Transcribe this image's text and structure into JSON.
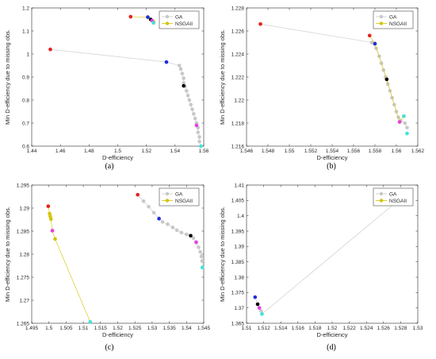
{
  "chart_data": [
    {
      "type": "scatter",
      "panel_label": "(a)",
      "xlabel": "D-efficiency",
      "ylabel": "Min D-efficiency due to missing obs.",
      "xlim": [
        1.44,
        1.56
      ],
      "ylim": [
        0.6,
        1.2
      ],
      "xticks": [
        "1.44",
        "1.46",
        "1.48",
        "1.5",
        "1.52",
        "1.54",
        "1.56"
      ],
      "yticks": [
        "0.6",
        "0.7",
        "0.8",
        "0.9",
        "1",
        "1.1",
        "1.2"
      ],
      "legend": {
        "position": "top-right",
        "entries": [
          "GA",
          "NSGAII"
        ]
      },
      "series": [
        {
          "name": "GA",
          "color": "#c8c8c8",
          "points": [
            [
              1.453,
              1.02
            ],
            [
              1.534,
              0.965
            ],
            [
              1.543,
              0.95
            ],
            [
              1.544,
              0.935
            ],
            [
              1.545,
              0.915
            ],
            [
              1.546,
              0.895
            ],
            [
              1.546,
              0.875
            ],
            [
              1.547,
              0.86
            ],
            [
              1.548,
              0.84
            ],
            [
              1.549,
              0.82
            ],
            [
              1.55,
              0.8
            ],
            [
              1.551,
              0.78
            ],
            [
              1.552,
              0.76
            ],
            [
              1.553,
              0.74
            ],
            [
              1.554,
              0.72
            ],
            [
              1.555,
              0.7
            ],
            [
              1.556,
              0.68
            ],
            [
              1.556,
              0.66
            ],
            [
              1.557,
              0.64
            ],
            [
              1.557,
              0.62
            ],
            [
              1.558,
              0.6
            ]
          ]
        },
        {
          "name": "NSGAII",
          "color": "#d4c400",
          "points": [
            [
              1.509,
              1.162
            ],
            [
              1.521,
              1.16
            ],
            [
              1.523,
              1.15
            ],
            [
              1.524,
              1.145
            ],
            [
              1.525,
              1.14
            ],
            [
              1.525,
              1.135
            ]
          ]
        }
      ],
      "highlights": [
        {
          "color": "#e8211e",
          "points": [
            [
              1.453,
              1.02
            ],
            [
              1.509,
              1.162
            ]
          ]
        },
        {
          "color": "#1f2ee0",
          "points": [
            [
              1.534,
              0.965
            ],
            [
              1.521,
              1.16
            ]
          ]
        },
        {
          "color": "#000000",
          "points": [
            [
              1.546,
              0.862
            ],
            [
              1.523,
              1.15
            ]
          ]
        },
        {
          "color": "#e83fe6",
          "points": [
            [
              1.555,
              0.69
            ],
            [
              1.524,
              1.145
            ]
          ]
        },
        {
          "color": "#3fe3df",
          "points": [
            [
              1.558,
              0.6
            ],
            [
              1.525,
              1.135
            ]
          ]
        }
      ]
    },
    {
      "type": "scatter",
      "panel_label": "(b)",
      "xlabel": "D-efficiency",
      "ylabel": "Min D-efficiency due to missing obs.",
      "xlim": [
        1.546,
        1.562
      ],
      "ylim": [
        1.216,
        1.228
      ],
      "xticks": [
        "1.546",
        "1.548",
        "1.55",
        "1.552",
        "1.554",
        "1.556",
        "1.558",
        "1.56",
        "1.562"
      ],
      "yticks": [
        "1.216",
        "1.218",
        "1.22",
        "1.222",
        "1.224",
        "1.226",
        "1.228"
      ],
      "legend": {
        "position": "top-right",
        "entries": [
          "GA",
          "NSGAII"
        ]
      },
      "series": [
        {
          "name": "GA",
          "color": "#c8c8c8",
          "points": [
            [
              1.5473,
              1.2266
            ],
            [
              1.5577,
              1.225
            ],
            [
              1.5581,
              1.2245
            ],
            [
              1.5584,
              1.2238
            ],
            [
              1.5586,
              1.2232
            ],
            [
              1.5588,
              1.2226
            ],
            [
              1.559,
              1.222
            ],
            [
              1.5592,
              1.2214
            ],
            [
              1.5594,
              1.2208
            ],
            [
              1.5596,
              1.2202
            ],
            [
              1.5598,
              1.2196
            ],
            [
              1.56,
              1.219
            ],
            [
              1.5602,
              1.2185
            ],
            [
              1.5604,
              1.2182
            ],
            [
              1.5608,
              1.218
            ],
            [
              1.561,
              1.2176
            ]
          ]
        },
        {
          "name": "NSGAII",
          "color": "#d4c400",
          "points": [
            [
              1.5575,
              1.2256
            ],
            [
              1.558,
              1.2249
            ],
            [
              1.5591,
              1.2218
            ],
            [
              1.5603,
              1.2181
            ],
            [
              1.5607,
              1.2186
            ]
          ]
        }
      ],
      "highlights": [
        {
          "color": "#e8211e",
          "points": [
            [
              1.5473,
              1.2266
            ],
            [
              1.5575,
              1.2256
            ]
          ]
        },
        {
          "color": "#1f2ee0",
          "points": [
            [
              1.558,
              1.2249
            ]
          ]
        },
        {
          "color": "#000000",
          "points": [
            [
              1.5591,
              1.2218
            ]
          ]
        },
        {
          "color": "#e83fe6",
          "points": [
            [
              1.5603,
              1.2181
            ]
          ]
        },
        {
          "color": "#3fe3df",
          "points": [
            [
              1.561,
              1.2171
            ],
            [
              1.5607,
              1.2186
            ]
          ]
        }
      ]
    },
    {
      "type": "scatter",
      "panel_label": "(c)",
      "xlabel": "D-efficiency",
      "ylabel": "Min D-efficiency due to missing obs.",
      "xlim": [
        1.495,
        1.545
      ],
      "ylim": [
        1.265,
        1.295
      ],
      "xticks": [
        "1.495",
        "1.5",
        "1.505",
        "1.51",
        "1.515",
        "1.52",
        "1.525",
        "1.53",
        "1.535",
        "1.54",
        "1.545"
      ],
      "yticks": [
        "1.265",
        "1.27",
        "1.275",
        "1.28",
        "1.285",
        "1.29",
        "1.295"
      ],
      "legend": {
        "position": "top-right",
        "entries": [
          "GA",
          "NSGAII"
        ]
      },
      "series": [
        {
          "name": "GA",
          "color": "#c8c8c8",
          "points": [
            [
              1.5258,
              1.2929
            ],
            [
              1.5275,
              1.2915
            ],
            [
              1.529,
              1.2903
            ],
            [
              1.5305,
              1.289
            ],
            [
              1.532,
              1.2878
            ],
            [
              1.533,
              1.287
            ],
            [
              1.5345,
              1.2865
            ],
            [
              1.536,
              1.2858
            ],
            [
              1.5372,
              1.2852
            ],
            [
              1.5385,
              1.2847
            ],
            [
              1.54,
              1.2843
            ],
            [
              1.5412,
              1.284
            ],
            [
              1.542,
              1.2835
            ],
            [
              1.5428,
              1.2825
            ],
            [
              1.5435,
              1.2815
            ],
            [
              1.544,
              1.2805
            ],
            [
              1.5443,
              1.2795
            ],
            [
              1.5445,
              1.2785
            ],
            [
              1.5446,
              1.2771
            ]
          ]
        },
        {
          "name": "NSGAII",
          "color": "#d4c400",
          "points": [
            [
              1.4998,
              1.2904
            ],
            [
              1.5002,
              1.2888
            ],
            [
              1.5004,
              1.2882
            ],
            [
              1.5006,
              1.2876
            ],
            [
              1.501,
              1.2851
            ],
            [
              1.5018,
              1.2833
            ],
            [
              1.512,
              1.2653
            ]
          ]
        }
      ],
      "highlights": [
        {
          "color": "#e8211e",
          "points": [
            [
              1.5258,
              1.2929
            ],
            [
              1.4998,
              1.2904
            ]
          ]
        },
        {
          "color": "#1f2ee0",
          "points": [
            [
              1.532,
              1.2877
            ]
          ]
        },
        {
          "color": "#000000",
          "points": [
            [
              1.5412,
              1.284
            ]
          ]
        },
        {
          "color": "#e83fe6",
          "points": [
            [
              1.5428,
              1.2826
            ],
            [
              1.501,
              1.2851
            ]
          ]
        },
        {
          "color": "#3fe3df",
          "points": [
            [
              1.5446,
              1.2771
            ],
            [
              1.512,
              1.2653
            ]
          ]
        }
      ]
    },
    {
      "type": "scatter",
      "panel_label": "(d)",
      "xlabel": "D-efficiency",
      "ylabel": "Min D-efficiency due to missing obs.",
      "xlim": [
        1.51,
        1.53
      ],
      "ylim": [
        1.365,
        1.41
      ],
      "xticks": [
        "1.51",
        "1.512",
        "1.514",
        "1.516",
        "1.518",
        "1.52",
        "1.522",
        "1.524",
        "1.526",
        "1.528",
        "1.53"
      ],
      "yticks": [
        "1.365",
        "1.37",
        "1.375",
        "1.38",
        "1.385",
        "1.39",
        "1.395",
        "1.4",
        "1.405",
        "1.41"
      ],
      "legend": {
        "position": "top-right",
        "entries": [
          "GA",
          "NSGAII"
        ]
      },
      "series": [
        {
          "name": "GA",
          "color": "#c8c8c8",
          "points": [
            [
              1.511,
              1.3735
            ],
            [
              1.5113,
              1.3712
            ],
            [
              1.5115,
              1.37
            ],
            [
              1.5117,
              1.369
            ],
            [
              1.5118,
              1.368
            ],
            [
              1.5285,
              1.4068
            ]
          ]
        },
        {
          "name": "NSGAII",
          "color": "#d4c400",
          "points": [
            [
              1.5285,
              1.407
            ]
          ]
        }
      ],
      "highlights": [
        {
          "color": "#1f2ee0",
          "points": [
            [
              1.511,
              1.3735
            ]
          ]
        },
        {
          "color": "#000000",
          "points": [
            [
              1.5113,
              1.3712
            ]
          ]
        },
        {
          "color": "#e83fe6",
          "points": [
            [
              1.5115,
              1.37
            ]
          ]
        },
        {
          "color": "#3fe3df",
          "points": [
            [
              1.5118,
              1.368
            ]
          ]
        },
        {
          "color": "#e8211e",
          "points": [
            [
              1.5285,
              1.4068
            ]
          ]
        },
        {
          "color": "#1f2ee0",
          "points": [
            [
              1.5285,
              1.407
            ]
          ]
        },
        {
          "color": "#3fe3df",
          "points": [
            [
              1.5286,
              1.4068
            ]
          ]
        }
      ]
    }
  ]
}
